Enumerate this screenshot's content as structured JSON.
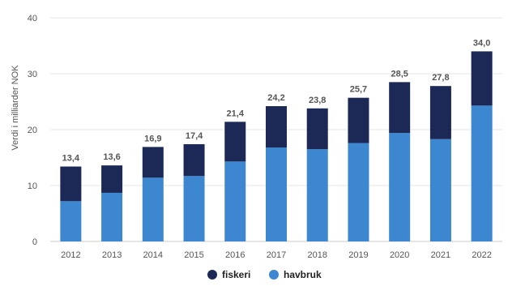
{
  "chart_data": {
    "type": "bar",
    "stacked": true,
    "ylabel": "Verdi i milliarder NOK",
    "xlabel": "",
    "ylim": [
      0,
      40
    ],
    "yticks": [
      0,
      10,
      20,
      30,
      40
    ],
    "grid": true,
    "legend_position": "bottom",
    "categories": [
      "2012",
      "2013",
      "2014",
      "2015",
      "2016",
      "2017",
      "2018",
      "2019",
      "2020",
      "2021",
      "2022"
    ],
    "series": [
      {
        "name": "havbruk",
        "color": "#3d86d0",
        "values": [
          7.2,
          8.7,
          11.4,
          11.7,
          14.3,
          16.8,
          16.5,
          17.6,
          19.4,
          18.3,
          24.3
        ]
      },
      {
        "name": "fiskeri",
        "color": "#1c2957",
        "values": [
          6.2,
          4.9,
          5.5,
          5.7,
          7.1,
          7.4,
          7.3,
          8.1,
          9.1,
          9.5,
          9.7
        ]
      }
    ],
    "totals": [
      "13,4",
      "13,6",
      "16,9",
      "17,4",
      "21,4",
      "24,2",
      "23,8",
      "25,7",
      "28,5",
      "27,8",
      "34,0"
    ],
    "legend": [
      {
        "name": "fiskeri",
        "color": "#1c2957"
      },
      {
        "name": "havbruk",
        "color": "#3d86d0"
      }
    ]
  }
}
